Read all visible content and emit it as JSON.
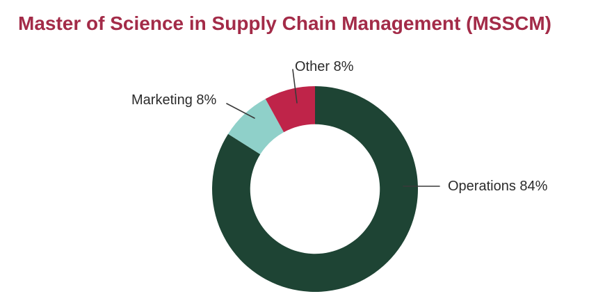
{
  "page": {
    "background": "#ffffff"
  },
  "chart_data": {
    "type": "pie",
    "variant": "donut",
    "title": "Master of Science in Supply Chain Management (MSSCM)",
    "title_color": "#a32b48",
    "unit": "%",
    "total": 100,
    "start_angle_deg": 0,
    "direction": "clockwise",
    "inner_radius_ratio": 0.63,
    "label_color": "#2b2b2b",
    "leader_line_color": "#3a3a3a",
    "legend_position": "none",
    "segments": [
      {
        "label": "Operations",
        "value": 84,
        "display": "Operations 84%",
        "color": "#1e4434"
      },
      {
        "label": "Marketing",
        "value": 8,
        "display": "Marketing 8%",
        "color": "#8fd0c9"
      },
      {
        "label": "Other",
        "value": 8,
        "display": "Other 8%",
        "color": "#bf2449"
      }
    ]
  }
}
